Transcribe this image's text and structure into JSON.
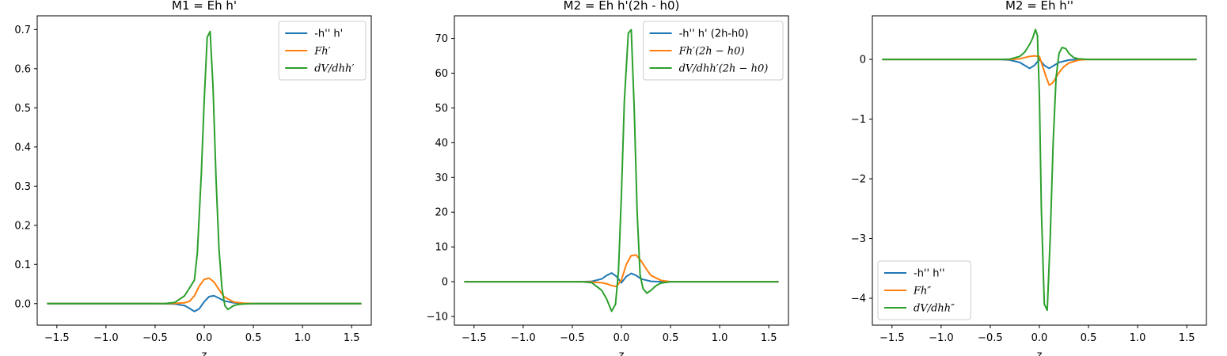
{
  "chart_data": [
    {
      "type": "line",
      "title": "M1 = Eh h'",
      "xlabel": "z",
      "ylabel": "",
      "xlim": [
        -1.7,
        1.7
      ],
      "ylim": [
        -0.055,
        0.735
      ],
      "xticks": [
        -1.5,
        -1.0,
        -0.5,
        0.0,
        0.5,
        1.0,
        1.5
      ],
      "xtick_labels": [
        "−1.5",
        "−1.0",
        "−0.5",
        "0.0",
        "0.5",
        "1.0",
        "1.5"
      ],
      "yticks": [
        0.0,
        0.1,
        0.2,
        0.3,
        0.4,
        0.5,
        0.6,
        0.7
      ],
      "ytick_labels": [
        "0.0",
        "0.1",
        "0.2",
        "0.3",
        "0.4",
        "0.5",
        "0.6",
        "0.7"
      ],
      "legend_position": "top-right",
      "series": [
        {
          "name": "-h'' h'",
          "math": false,
          "color": "#1f77b4",
          "x": [
            -1.6,
            -0.5,
            -0.3,
            -0.2,
            -0.15,
            -0.1,
            -0.05,
            0.0,
            0.05,
            0.1,
            0.15,
            0.2,
            0.3,
            0.4,
            0.5,
            1.6
          ],
          "y": [
            0,
            0,
            -0.001,
            -0.005,
            -0.012,
            -0.02,
            -0.013,
            0.005,
            0.018,
            0.02,
            0.014,
            0.007,
            0.002,
            0.0005,
            0,
            0
          ]
        },
        {
          "name": "Fh′",
          "math": true,
          "color": "#ff7f0e",
          "x": [
            -1.6,
            -0.4,
            -0.3,
            -0.2,
            -0.15,
            -0.1,
            -0.05,
            0.0,
            0.05,
            0.1,
            0.15,
            0.2,
            0.3,
            0.4,
            0.5,
            1.6
          ],
          "y": [
            0,
            0,
            0.0005,
            0.002,
            0.006,
            0.02,
            0.045,
            0.062,
            0.065,
            0.055,
            0.036,
            0.018,
            0.004,
            0.001,
            0,
            0
          ]
        },
        {
          "name": "dV/dhh′",
          "math": true,
          "color": "#2ca02c",
          "x": [
            -1.6,
            -0.4,
            -0.3,
            -0.2,
            -0.15,
            -0.1,
            -0.07,
            -0.03,
            0.0,
            0.03,
            0.06,
            0.09,
            0.12,
            0.15,
            0.18,
            0.21,
            0.24,
            0.27,
            0.3,
            0.35,
            0.4,
            0.5,
            1.6
          ],
          "y": [
            0,
            0,
            0.003,
            0.02,
            0.04,
            0.06,
            0.13,
            0.33,
            0.52,
            0.68,
            0.695,
            0.55,
            0.32,
            0.14,
            0.04,
            -0.005,
            -0.015,
            -0.01,
            -0.005,
            -0.002,
            -0.001,
            0,
            0
          ]
        }
      ]
    },
    {
      "type": "line",
      "title": "M2 = Eh h'(2h - h0)",
      "xlabel": "z",
      "ylabel": "",
      "xlim": [
        -1.7,
        1.7
      ],
      "ylim": [
        -12.5,
        76.5
      ],
      "xticks": [
        -1.5,
        -1.0,
        -0.5,
        0.0,
        0.5,
        1.0,
        1.5
      ],
      "xtick_labels": [
        "−1.5",
        "−1.0",
        "−0.5",
        "0.0",
        "0.5",
        "1.0",
        "1.5"
      ],
      "yticks": [
        -10,
        0,
        10,
        20,
        30,
        40,
        50,
        60,
        70
      ],
      "ytick_labels": [
        "−10",
        "0",
        "10",
        "20",
        "30",
        "40",
        "50",
        "60",
        "70"
      ],
      "legend_position": "top-right",
      "series": [
        {
          "name": "-h'' h' (2h-h0)",
          "math": false,
          "color": "#1f77b4",
          "x": [
            -1.6,
            -0.4,
            -0.3,
            -0.2,
            -0.15,
            -0.1,
            -0.05,
            0.0,
            0.05,
            0.1,
            0.15,
            0.2,
            0.3,
            0.4,
            0.5,
            1.6
          ],
          "y": [
            0,
            0,
            0.1,
            0.8,
            1.8,
            2.5,
            1.5,
            -0.3,
            1.5,
            2.4,
            1.8,
            0.8,
            0.1,
            0,
            0,
            0
          ]
        },
        {
          "name": "Fh′(2h − h0)",
          "math": true,
          "color": "#ff7f0e",
          "x": [
            -1.6,
            -0.4,
            -0.3,
            -0.2,
            -0.15,
            -0.1,
            -0.05,
            0.0,
            0.05,
            0.1,
            0.15,
            0.2,
            0.25,
            0.3,
            0.4,
            0.5,
            1.6
          ],
          "y": [
            0,
            0,
            -0.1,
            -0.3,
            -0.6,
            -1.1,
            -1.4,
            0.5,
            5.0,
            7.5,
            7.7,
            6.0,
            3.8,
            1.8,
            0.4,
            0,
            0
          ]
        },
        {
          "name": "dV/dhh′(2h − h0)",
          "math": true,
          "color": "#2ca02c",
          "x": [
            -1.6,
            -0.4,
            -0.3,
            -0.2,
            -0.15,
            -0.1,
            -0.06,
            -0.03,
            0.0,
            0.03,
            0.07,
            0.1,
            0.13,
            0.16,
            0.19,
            0.22,
            0.26,
            0.3,
            0.35,
            0.4,
            0.5,
            1.6
          ],
          "y": [
            0,
            0,
            -0.3,
            -2.5,
            -5.0,
            -8.5,
            -6.5,
            3.0,
            25.0,
            52.0,
            71.5,
            72.5,
            50.0,
            20.0,
            2.0,
            -2.0,
            -3.3,
            -2.5,
            -1.2,
            -0.4,
            0,
            0
          ]
        }
      ]
    },
    {
      "type": "line",
      "title": "M2 = Eh h''",
      "xlabel": "z",
      "ylabel": "",
      "xlim": [
        -1.7,
        1.7
      ],
      "ylim": [
        -4.45,
        0.73
      ],
      "xticks": [
        -1.5,
        -1.0,
        -0.5,
        0.0,
        0.5,
        1.0,
        1.5
      ],
      "xtick_labels": [
        "−1.5",
        "−1.0",
        "−0.5",
        "0.0",
        "0.5",
        "1.0",
        "1.5"
      ],
      "yticks": [
        -4,
        -3,
        -2,
        -1,
        0
      ],
      "ytick_labels": [
        "−4",
        "−3",
        "−2",
        "−1",
        "0"
      ],
      "legend_position": "bottom-left",
      "series": [
        {
          "name": "-h'' h''",
          "math": false,
          "color": "#1f77b4",
          "x": [
            -1.6,
            -0.4,
            -0.3,
            -0.2,
            -0.15,
            -0.1,
            -0.05,
            0.0,
            0.05,
            0.1,
            0.15,
            0.2,
            0.3,
            0.4,
            0.5,
            1.6
          ],
          "y": [
            0,
            0,
            -0.01,
            -0.05,
            -0.1,
            -0.15,
            -0.1,
            0.0,
            -0.1,
            -0.15,
            -0.1,
            -0.05,
            -0.01,
            0,
            0,
            0
          ]
        },
        {
          "name": "Fh″",
          "math": true,
          "color": "#ff7f0e",
          "x": [
            -1.6,
            -0.4,
            -0.3,
            -0.2,
            -0.15,
            -0.1,
            -0.05,
            0.0,
            0.03,
            0.07,
            0.1,
            0.13,
            0.16,
            0.2,
            0.25,
            0.3,
            0.4,
            0.5,
            1.6
          ],
          "y": [
            0,
            0,
            0,
            0.01,
            0.03,
            0.05,
            0.06,
            0.05,
            -0.1,
            -0.3,
            -0.43,
            -0.4,
            -0.33,
            -0.22,
            -0.12,
            -0.06,
            -0.01,
            0,
            0
          ]
        },
        {
          "name": "dV/dhh″",
          "math": true,
          "color": "#2ca02c",
          "x": [
            -1.6,
            -0.4,
            -0.3,
            -0.2,
            -0.15,
            -0.1,
            -0.07,
            -0.04,
            -0.02,
            0.0,
            0.02,
            0.05,
            0.08,
            0.11,
            0.14,
            0.17,
            0.2,
            0.23,
            0.27,
            0.3,
            0.35,
            0.4,
            0.5,
            1.6
          ],
          "y": [
            0,
            0,
            0.005,
            0.05,
            0.12,
            0.25,
            0.35,
            0.5,
            0.4,
            -0.6,
            -2.5,
            -4.1,
            -4.2,
            -3.0,
            -1.4,
            -0.3,
            0.1,
            0.2,
            0.18,
            0.1,
            0.03,
            0.01,
            0,
            0
          ]
        }
      ]
    }
  ]
}
